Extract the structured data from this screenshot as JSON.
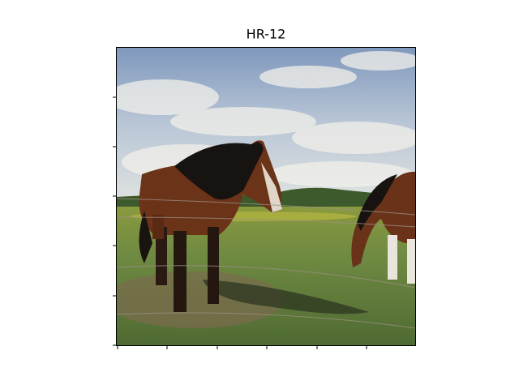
{
  "title": "HR-12"
}
